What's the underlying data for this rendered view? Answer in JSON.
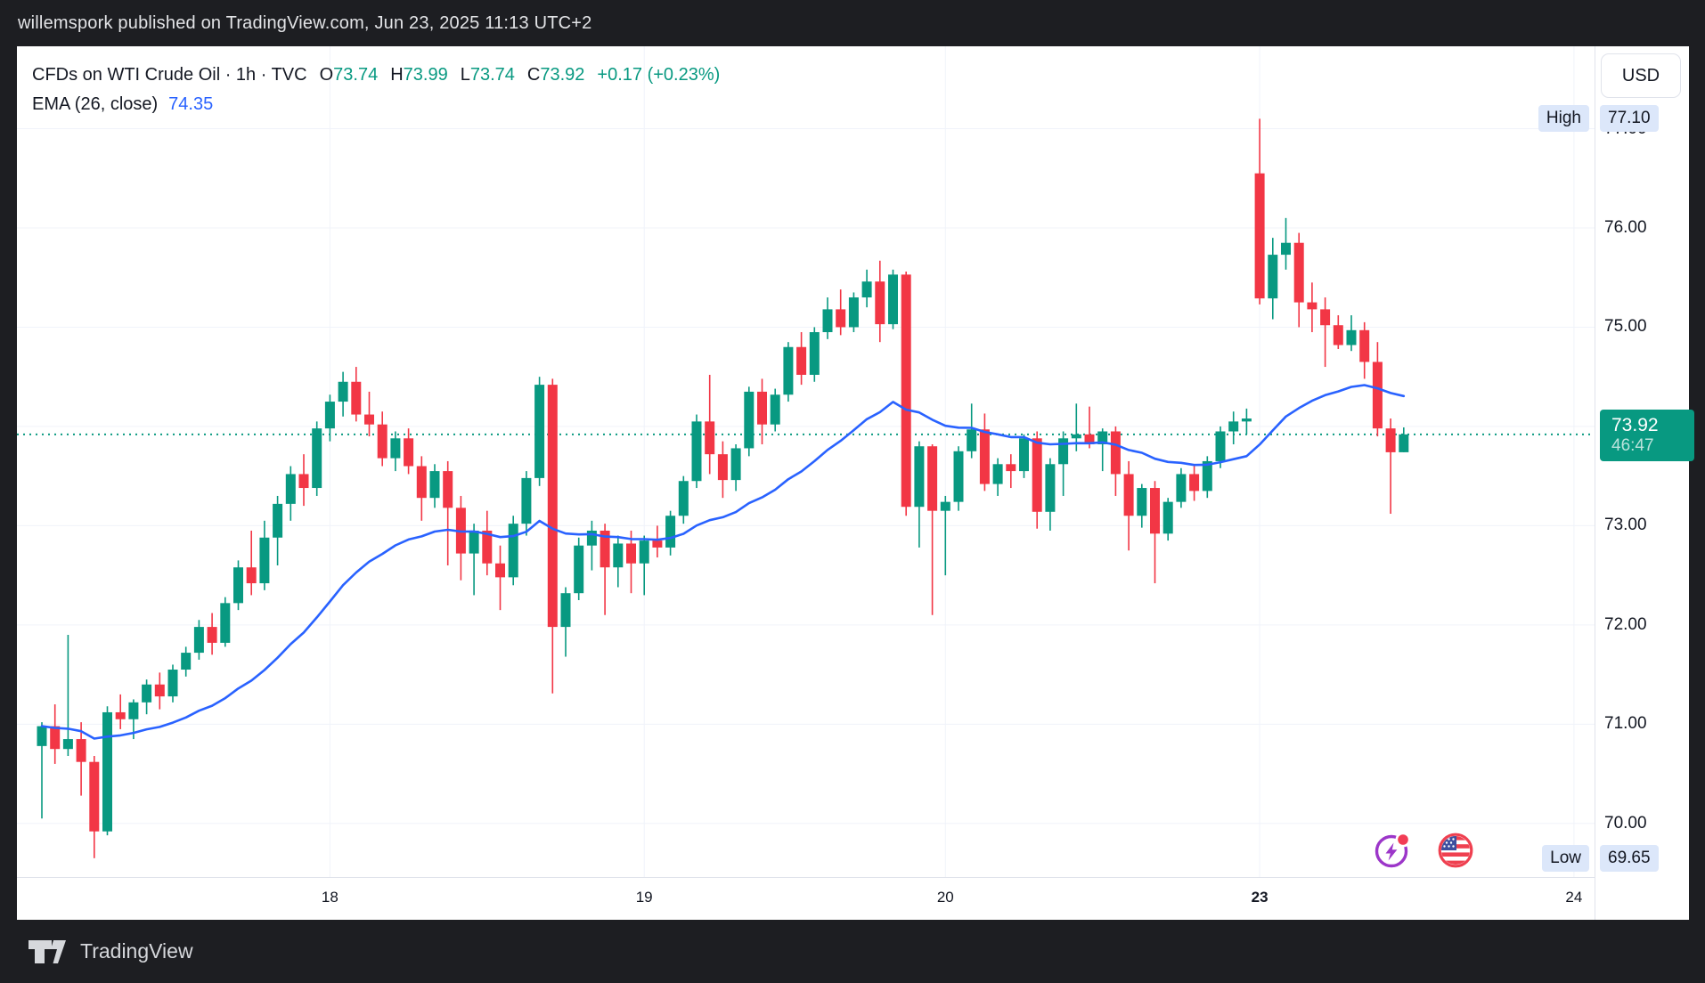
{
  "header": {
    "publish_text": "willemspork published on TradingView.com, Jun 23, 2025 11:13 UTC+2"
  },
  "legend": {
    "symbol_line": "CFDs on WTI Crude Oil · 1h · TVC",
    "ohlc": [
      {
        "label": "O",
        "value": "73.74"
      },
      {
        "label": "H",
        "value": "73.99"
      },
      {
        "label": "L",
        "value": "73.74"
      },
      {
        "label": "C",
        "value": "73.92"
      }
    ],
    "change": "+0.17 (+0.23%)",
    "indicator": {
      "label": "EMA (26, close)",
      "value": "74.35"
    }
  },
  "price_axis": {
    "currency_button": "USD",
    "visible_ticks": [
      "77.00",
      "76.00",
      "75.00",
      "73.00",
      "72.00",
      "71.00",
      "70.00"
    ],
    "high": {
      "label": "High",
      "value": "77.10"
    },
    "low": {
      "label": "Low",
      "value": "69.65"
    },
    "current": {
      "price": "73.92",
      "countdown": "46:47"
    }
  },
  "time_axis": {
    "ticks": [
      {
        "label": "18",
        "index": 22,
        "bold": false
      },
      {
        "label": "19",
        "index": 46,
        "bold": false
      },
      {
        "label": "20",
        "index": 69,
        "bold": false
      },
      {
        "label": "23",
        "index": 93,
        "bold": true
      },
      {
        "label": "24",
        "index": 117,
        "bold": false
      }
    ]
  },
  "footer": {
    "brand": "TradingView"
  },
  "colors": {
    "up": "#089981",
    "down": "#f23645",
    "ema": "#2962ff",
    "grid": "#f0f3fa",
    "axis_text": "#131722",
    "chip_bg": "#dce7fa",
    "badge_bg": "#089981",
    "dotted_line": "#089981",
    "dark_bar": "#1d1e22"
  },
  "chart_data": {
    "type": "candlestick",
    "title": "CFDs on WTI Crude Oil",
    "interval": "1h",
    "exchange": "TVC",
    "currency": "USD",
    "high": 77.1,
    "low": 69.65,
    "current_price": 73.92,
    "prev_close_change": "+0.17 (+0.23%)",
    "y_range": [
      69.46,
      77.83
    ],
    "price_gridlines": [
      77,
      76,
      75,
      74,
      73,
      72,
      71,
      70
    ],
    "overlays": [
      {
        "name": "EMA",
        "period": 26,
        "source": "close",
        "last_value": 74.35
      }
    ],
    "legend_note": "candles are [open, high, low, close], hourly, Jun 17 - Jun 23",
    "candles": [
      [
        70.78,
        71.02,
        70.05,
        70.98
      ],
      [
        70.98,
        71.2,
        70.6,
        70.75
      ],
      [
        70.75,
        71.9,
        70.68,
        70.85
      ],
      [
        70.85,
        71.02,
        70.28,
        70.62
      ],
      [
        70.62,
        70.68,
        69.65,
        69.92
      ],
      [
        69.92,
        71.18,
        69.88,
        71.12
      ],
      [
        71.12,
        71.3,
        70.95,
        71.05
      ],
      [
        71.05,
        71.25,
        70.85,
        71.22
      ],
      [
        71.22,
        71.45,
        71.1,
        71.4
      ],
      [
        71.4,
        71.52,
        71.15,
        71.28
      ],
      [
        71.28,
        71.6,
        71.22,
        71.55
      ],
      [
        71.55,
        71.78,
        71.48,
        71.72
      ],
      [
        71.72,
        72.05,
        71.65,
        71.98
      ],
      [
        71.98,
        72.12,
        71.7,
        71.82
      ],
      [
        71.82,
        72.28,
        71.78,
        72.22
      ],
      [
        72.22,
        72.65,
        72.15,
        72.58
      ],
      [
        72.58,
        72.95,
        72.3,
        72.42
      ],
      [
        72.42,
        73.05,
        72.35,
        72.88
      ],
      [
        72.88,
        73.3,
        72.6,
        73.22
      ],
      [
        73.22,
        73.6,
        73.05,
        73.52
      ],
      [
        73.52,
        73.72,
        73.2,
        73.38
      ],
      [
        73.38,
        74.05,
        73.3,
        73.98
      ],
      [
        73.98,
        74.32,
        73.85,
        74.25
      ],
      [
        74.25,
        74.55,
        74.1,
        74.45
      ],
      [
        74.45,
        74.6,
        74.05,
        74.12
      ],
      [
        74.12,
        74.35,
        73.9,
        74.02
      ],
      [
        74.02,
        74.15,
        73.6,
        73.68
      ],
      [
        73.68,
        73.95,
        73.55,
        73.88
      ],
      [
        73.88,
        73.98,
        73.52,
        73.6
      ],
      [
        73.6,
        73.7,
        73.05,
        73.28
      ],
      [
        73.28,
        73.62,
        73.18,
        73.55
      ],
      [
        73.55,
        73.65,
        72.6,
        73.18
      ],
      [
        73.18,
        73.3,
        72.45,
        72.72
      ],
      [
        72.72,
        73.02,
        72.3,
        72.95
      ],
      [
        72.95,
        73.15,
        72.5,
        72.62
      ],
      [
        72.62,
        72.8,
        72.15,
        72.48
      ],
      [
        72.48,
        73.1,
        72.4,
        73.02
      ],
      [
        73.02,
        73.55,
        72.9,
        73.48
      ],
      [
        73.48,
        74.5,
        73.4,
        74.42
      ],
      [
        74.42,
        74.48,
        71.31,
        71.98
      ],
      [
        71.98,
        72.38,
        71.68,
        72.32
      ],
      [
        72.32,
        72.88,
        72.25,
        72.8
      ],
      [
        72.8,
        73.05,
        72.55,
        72.95
      ],
      [
        72.95,
        73.02,
        72.1,
        72.58
      ],
      [
        72.58,
        72.9,
        72.38,
        72.82
      ],
      [
        72.82,
        72.95,
        72.32,
        72.62
      ],
      [
        72.62,
        72.9,
        72.3,
        72.85
      ],
      [
        72.85,
        73.0,
        72.68,
        72.78
      ],
      [
        72.78,
        73.15,
        72.7,
        73.1
      ],
      [
        73.1,
        73.5,
        73.02,
        73.45
      ],
      [
        73.45,
        74.12,
        73.38,
        74.05
      ],
      [
        74.05,
        74.52,
        73.52,
        73.72
      ],
      [
        73.72,
        73.85,
        73.28,
        73.46
      ],
      [
        73.46,
        73.82,
        73.35,
        73.78
      ],
      [
        73.78,
        74.4,
        73.7,
        74.35
      ],
      [
        74.35,
        74.48,
        73.82,
        74.02
      ],
      [
        74.02,
        74.38,
        73.95,
        74.32
      ],
      [
        74.32,
        74.85,
        74.25,
        74.8
      ],
      [
        74.8,
        74.95,
        74.42,
        74.52
      ],
      [
        74.52,
        75.0,
        74.45,
        74.95
      ],
      [
        74.95,
        75.3,
        74.88,
        75.18
      ],
      [
        75.18,
        75.38,
        74.92,
        75.0
      ],
      [
        75.0,
        75.35,
        74.95,
        75.3
      ],
      [
        75.3,
        75.58,
        75.2,
        75.46
      ],
      [
        75.46,
        75.67,
        74.85,
        75.03
      ],
      [
        75.03,
        75.58,
        74.98,
        75.53
      ],
      [
        75.53,
        75.56,
        73.1,
        73.19
      ],
      [
        73.19,
        73.85,
        72.78,
        73.8
      ],
      [
        73.8,
        73.82,
        72.1,
        73.15
      ],
      [
        73.15,
        73.3,
        72.5,
        73.24
      ],
      [
        73.24,
        73.8,
        73.15,
        73.75
      ],
      [
        73.75,
        74.23,
        73.68,
        73.97
      ],
      [
        73.97,
        74.13,
        73.35,
        73.42
      ],
      [
        73.42,
        73.68,
        73.3,
        73.62
      ],
      [
        73.62,
        73.72,
        73.38,
        73.55
      ],
      [
        73.55,
        73.92,
        73.48,
        73.88
      ],
      [
        73.88,
        73.95,
        72.97,
        73.14
      ],
      [
        73.14,
        73.68,
        72.95,
        73.62
      ],
      [
        73.62,
        73.95,
        73.3,
        73.88
      ],
      [
        73.88,
        74.23,
        73.75,
        73.92
      ],
      [
        73.92,
        74.2,
        73.78,
        73.82
      ],
      [
        73.82,
        73.98,
        73.55,
        73.95
      ],
      [
        73.95,
        74.0,
        73.3,
        73.52
      ],
      [
        73.52,
        73.65,
        72.75,
        73.1
      ],
      [
        73.1,
        73.42,
        72.98,
        73.38
      ],
      [
        73.38,
        73.45,
        72.42,
        72.92
      ],
      [
        72.92,
        73.28,
        72.85,
        73.24
      ],
      [
        73.24,
        73.58,
        73.18,
        73.52
      ],
      [
        73.52,
        73.6,
        73.25,
        73.35
      ],
      [
        73.35,
        73.7,
        73.28,
        73.65
      ],
      [
        73.65,
        74.0,
        73.58,
        73.95
      ],
      [
        73.95,
        74.15,
        73.82,
        74.05
      ],
      [
        74.05,
        74.18,
        73.92,
        74.08
      ],
      [
        76.55,
        77.1,
        75.23,
        75.29
      ],
      [
        75.29,
        75.9,
        75.08,
        75.73
      ],
      [
        75.73,
        76.1,
        75.58,
        75.85
      ],
      [
        75.85,
        75.95,
        75.0,
        75.25
      ],
      [
        75.25,
        75.45,
        74.95,
        75.18
      ],
      [
        75.18,
        75.3,
        74.6,
        75.02
      ],
      [
        75.02,
        75.12,
        74.78,
        74.82
      ],
      [
        74.82,
        75.12,
        74.76,
        74.97
      ],
      [
        74.97,
        75.05,
        74.48,
        74.65
      ],
      [
        74.65,
        74.85,
        73.9,
        73.98
      ],
      [
        73.98,
        74.08,
        73.12,
        73.74
      ],
      [
        73.74,
        73.99,
        73.74,
        73.92
      ]
    ]
  }
}
